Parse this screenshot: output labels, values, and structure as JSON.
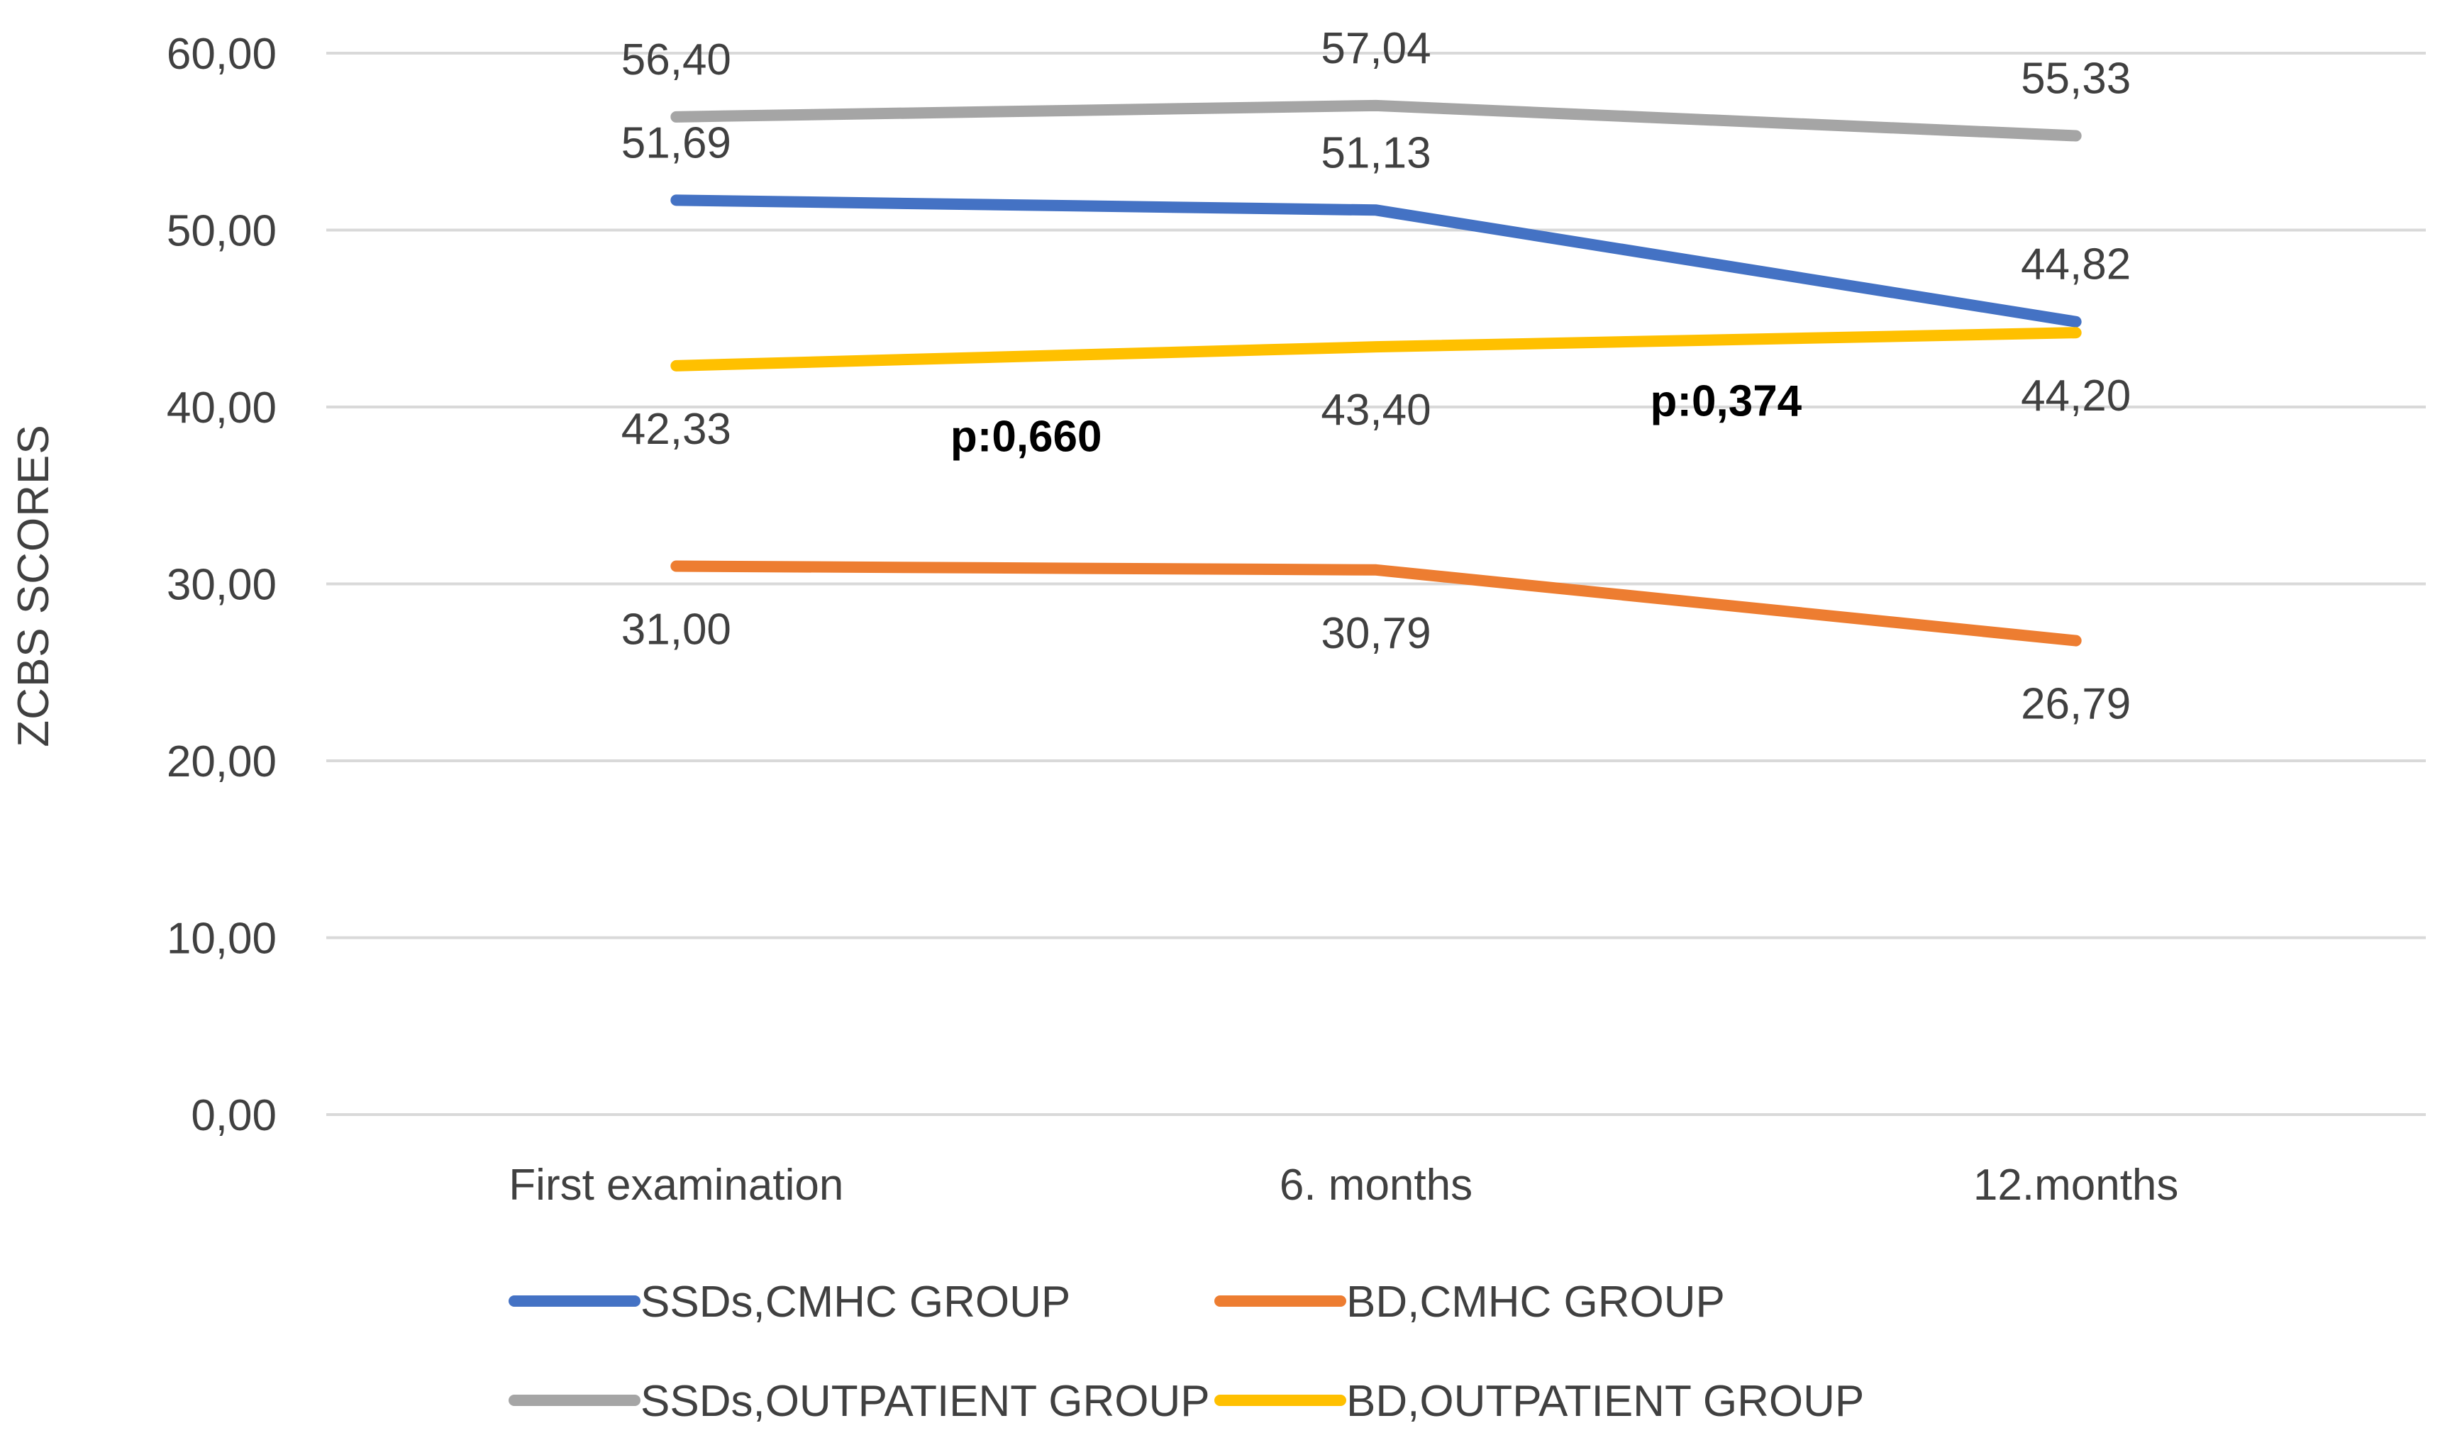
{
  "chart_data": {
    "type": "line",
    "title": "",
    "xlabel": "",
    "ylabel": "ZCBS SCORES",
    "ylim": [
      0,
      60
    ],
    "y_ticks": [
      "0,00",
      "10,00",
      "20,00",
      "30,00",
      "40,00",
      "50,00",
      "60,00"
    ],
    "grid": true,
    "legend_position": "bottom",
    "categories": [
      "First examination",
      "6. months",
      "12.months"
    ],
    "series": [
      {
        "name": "SSDs,CMHC GROUP",
        "color": "#4472c4",
        "values": [
          51.69,
          51.13,
          44.82
        ],
        "labels": [
          "51,69",
          "51,13",
          "44,82"
        ],
        "label_pos": [
          "above",
          "above",
          "above"
        ]
      },
      {
        "name": "BD,CMHC GROUP",
        "color": "#ed7d31",
        "values": [
          31.0,
          30.79,
          26.79
        ],
        "labels": [
          "31,00",
          "30,79",
          "26,79"
        ],
        "label_pos": [
          "below",
          "below",
          "below"
        ]
      },
      {
        "name": "SSDs,OUTPATIENT GROUP",
        "color": "#a5a5a5",
        "values": [
          56.4,
          57.04,
          55.33
        ],
        "labels": [
          "56,40",
          "57,04",
          "55,33"
        ],
        "label_pos": [
          "above",
          "above",
          "above"
        ]
      },
      {
        "name": "BD,OUTPATIENT GROUP",
        "color": "#ffc000",
        "values": [
          42.33,
          43.4,
          44.2
        ],
        "labels": [
          "42,33",
          "43,40",
          "44,20"
        ],
        "label_pos": [
          "below",
          "below",
          "below"
        ]
      }
    ],
    "annotations": [
      {
        "text": "p:0,660",
        "between": [
          0,
          1
        ],
        "y": 37.5
      },
      {
        "text": "p:0,374",
        "between": [
          1,
          2
        ],
        "y": 39.5
      }
    ]
  }
}
